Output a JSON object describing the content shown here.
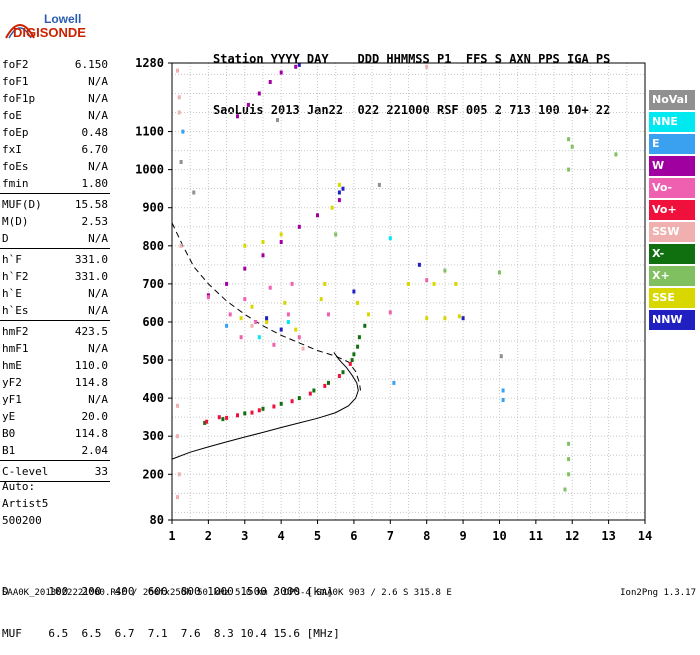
{
  "logo": {
    "line1": "Lowell",
    "line2": "DIGISONDE",
    "colors": {
      "text1": "#2a5db0",
      "text2": "#cc2200"
    }
  },
  "header": {
    "labels": [
      "Station",
      "YYYY",
      "DAY",
      "DDD",
      "HHMMSS",
      "P1",
      "FFS",
      "S",
      "AXN",
      "PPS",
      "IGA",
      "PS"
    ],
    "values": [
      "SaoLuis",
      "2013",
      "Jan22",
      "022",
      "221000",
      "RSF",
      "005",
      "2",
      "713",
      "100",
      "10+",
      "22"
    ]
  },
  "params": [
    [
      {
        "label": "foF2",
        "value": "6.150"
      },
      {
        "label": "foF1",
        "value": "N/A"
      },
      {
        "label": "foF1p",
        "value": "N/A"
      },
      {
        "label": "foE",
        "value": "N/A"
      },
      {
        "label": "foEp",
        "value": "0.48"
      },
      {
        "label": "fxI",
        "value": "6.70"
      },
      {
        "label": "foEs",
        "value": "N/A"
      },
      {
        "label": "fmin",
        "value": "1.80"
      }
    ],
    [
      {
        "label": "MUF(D)",
        "value": "15.58"
      },
      {
        "label": "M(D)",
        "value": "2.53"
      },
      {
        "label": "D",
        "value": "N/A"
      }
    ],
    [
      {
        "label": "h`F",
        "value": "331.0"
      },
      {
        "label": "h`F2",
        "value": "331.0"
      },
      {
        "label": "h`E",
        "value": "N/A"
      },
      {
        "label": "h`Es",
        "value": "N/A"
      }
    ],
    [
      {
        "label": "hmF2",
        "value": "423.5"
      },
      {
        "label": "hmF1",
        "value": "N/A"
      },
      {
        "label": "hmE",
        "value": "110.0"
      },
      {
        "label": "yF2",
        "value": "114.8"
      },
      {
        "label": "yF1",
        "value": "N/A"
      },
      {
        "label": "yE",
        "value": "20.0"
      },
      {
        "label": "B0",
        "value": "114.8"
      },
      {
        "label": "B1",
        "value": "2.04"
      }
    ],
    [
      {
        "label": "C-level",
        "value": "33"
      }
    ]
  ],
  "auto": {
    "line1": "Auto:",
    "line2": "Artist5",
    "line3": "500200"
  },
  "legend": [
    {
      "label": "NoVal",
      "color": "#909090"
    },
    {
      "label": "NNE",
      "color": "#00e8f0"
    },
    {
      "label": "E",
      "color": "#3aa0f0"
    },
    {
      "label": "W",
      "color": "#a000a0"
    },
    {
      "label": "Vo-",
      "color": "#f060b0"
    },
    {
      "label": "Vo+",
      "color": "#f0103c"
    },
    {
      "label": "SSW",
      "color": "#f0b0b0"
    },
    {
      "label": "X-",
      "color": "#107010"
    },
    {
      "label": "X+",
      "color": "#80c060"
    },
    {
      "label": "SSE",
      "color": "#d8d800"
    },
    {
      "label": "NNW",
      "color": "#2020c0"
    }
  ],
  "muf_table": {
    "row1_label": "D",
    "distances": [
      "100",
      "200",
      "400",
      "600",
      "800",
      "1000",
      "1500",
      "3000"
    ],
    "row1_unit": "[km]",
    "row2_label": "MUF",
    "mufs": [
      "6.5",
      "6.5",
      "6.7",
      "7.1",
      "7.6",
      "8.3",
      "10.4",
      "15.6"
    ],
    "row2_unit": "[MHz]"
  },
  "footer": {
    "left": "SAA0K_2013022221000.RSF / 260fx256h 50 kHz 5.0 km / DPS-4 SAA0K 903 / 2.6 S 315.8 E",
    "right": "Ion2Png 1.3.17"
  },
  "chart_data": {
    "type": "scatter",
    "x_ticks": [
      "1",
      "2",
      "3",
      "4",
      "5",
      "6",
      "7",
      "8",
      "9",
      "10",
      "11",
      "12",
      "13",
      "14"
    ],
    "y_ticks": [
      "80",
      "200",
      "300",
      "400",
      "500",
      "600",
      "700",
      "800",
      "900",
      "1000",
      "1100",
      "1280"
    ],
    "xlim": [
      1,
      14
    ],
    "ylim": [
      80,
      1280
    ],
    "grid": true,
    "legend_position": "right",
    "series": [
      {
        "color_key": "X-",
        "color": "#107010",
        "points": [
          [
            1.9,
            335
          ],
          [
            2.4,
            345
          ],
          [
            3.0,
            360
          ],
          [
            3.5,
            372
          ],
          [
            4.0,
            385
          ],
          [
            4.5,
            400
          ],
          [
            4.9,
            420
          ],
          [
            5.3,
            440
          ],
          [
            5.7,
            468
          ],
          [
            5.95,
            500
          ],
          [
            6.0,
            515
          ],
          [
            6.1,
            535
          ],
          [
            6.15,
            560
          ],
          [
            6.3,
            590
          ]
        ]
      },
      {
        "color_key": "Vo+",
        "color": "#f0103c",
        "points": [
          [
            1.95,
            338
          ],
          [
            2.5,
            348
          ],
          [
            3.2,
            362
          ],
          [
            3.8,
            378
          ],
          [
            4.3,
            392
          ],
          [
            4.8,
            412
          ],
          [
            5.2,
            432
          ],
          [
            5.6,
            458
          ],
          [
            5.9,
            490
          ],
          [
            2.3,
            350
          ],
          [
            2.8,
            355
          ],
          [
            3.4,
            368
          ]
        ]
      },
      {
        "color_key": "W",
        "color": "#a000a0",
        "points": [
          [
            2.0,
            670
          ],
          [
            2.5,
            700
          ],
          [
            3.0,
            740
          ],
          [
            3.5,
            775
          ],
          [
            4.0,
            810
          ],
          [
            4.5,
            850
          ],
          [
            5.0,
            880
          ],
          [
            5.6,
            920
          ],
          [
            2.8,
            1140
          ],
          [
            3.1,
            1170
          ],
          [
            3.4,
            1200
          ],
          [
            3.7,
            1230
          ],
          [
            4.0,
            1255
          ],
          [
            4.4,
            1270
          ]
        ]
      },
      {
        "color_key": "SSE",
        "color": "#d8d800",
        "points": [
          [
            3.0,
            800
          ],
          [
            3.5,
            810
          ],
          [
            4.0,
            830
          ],
          [
            2.9,
            610
          ],
          [
            3.2,
            640
          ],
          [
            3.6,
            600
          ],
          [
            4.1,
            650
          ],
          [
            4.4,
            580
          ],
          [
            5.2,
            700
          ],
          [
            5.4,
            900
          ],
          [
            5.6,
            960
          ],
          [
            6.1,
            650
          ],
          [
            6.4,
            620
          ],
          [
            8.0,
            610
          ],
          [
            8.5,
            610
          ],
          [
            8.9,
            615
          ],
          [
            7.5,
            700
          ],
          [
            8.2,
            700
          ],
          [
            8.8,
            700
          ],
          [
            5.1,
            660
          ]
        ]
      },
      {
        "color_key": "Vo-",
        "color": "#f060b0",
        "points": [
          [
            2.6,
            620
          ],
          [
            3.0,
            660
          ],
          [
            3.3,
            600
          ],
          [
            3.7,
            690
          ],
          [
            4.2,
            620
          ],
          [
            4.5,
            560
          ],
          [
            2.9,
            560
          ],
          [
            3.8,
            540
          ],
          [
            4.3,
            700
          ],
          [
            2.0,
            665
          ],
          [
            5.3,
            620
          ],
          [
            7.0,
            625
          ],
          [
            8.0,
            710
          ]
        ]
      },
      {
        "color_key": "NNW",
        "color": "#2020c0",
        "points": [
          [
            5.6,
            940
          ],
          [
            5.7,
            950
          ],
          [
            4.5,
            1275
          ],
          [
            3.6,
            610
          ],
          [
            4.0,
            580
          ],
          [
            6.0,
            680
          ],
          [
            7.8,
            750
          ],
          [
            9.0,
            610
          ]
        ]
      },
      {
        "color_key": "E",
        "color": "#3aa0f0",
        "points": [
          [
            1.3,
            1100
          ],
          [
            7.1,
            440
          ],
          [
            10.1,
            420
          ],
          [
            10.1,
            395
          ],
          [
            2.5,
            590
          ]
        ]
      },
      {
        "color_key": "X+",
        "color": "#80c060",
        "points": [
          [
            11.9,
            1080
          ],
          [
            11.9,
            1000
          ],
          [
            12.0,
            1060
          ],
          [
            13.2,
            1040
          ],
          [
            11.9,
            280
          ],
          [
            11.9,
            240
          ],
          [
            11.8,
            160
          ],
          [
            11.9,
            200
          ],
          [
            8.5,
            735
          ],
          [
            10.0,
            730
          ],
          [
            5.5,
            830
          ]
        ]
      },
      {
        "color_key": "NNE",
        "color": "#00e8f0",
        "points": [
          [
            3.4,
            560
          ],
          [
            4.2,
            600
          ],
          [
            7.0,
            820
          ]
        ]
      },
      {
        "color_key": "NoVal",
        "color": "#909090",
        "points": [
          [
            1.25,
            1020
          ],
          [
            1.6,
            940
          ],
          [
            3.9,
            1130
          ],
          [
            6.7,
            960
          ],
          [
            10.05,
            510
          ]
        ]
      },
      {
        "color_key": "SSW",
        "color": "#f0b0b0",
        "points": [
          [
            1.15,
            1260
          ],
          [
            1.2,
            1190
          ],
          [
            1.2,
            1150
          ],
          [
            1.25,
            800
          ],
          [
            1.15,
            380
          ],
          [
            1.15,
            300
          ],
          [
            1.2,
            200
          ],
          [
            1.15,
            140
          ],
          [
            8.0,
            1270
          ],
          [
            4.6,
            530
          ],
          [
            3.2,
            590
          ]
        ]
      }
    ],
    "profile_curves": {
      "solid": [
        [
          1.0,
          240
        ],
        [
          1.5,
          258
        ],
        [
          2.0,
          272
        ],
        [
          2.5,
          285
        ],
        [
          3.0,
          298
        ],
        [
          3.5,
          310
        ],
        [
          4.0,
          323
        ],
        [
          4.5,
          335
        ],
        [
          5.0,
          347
        ],
        [
          5.5,
          362
        ],
        [
          5.85,
          380
        ],
        [
          6.05,
          400
        ],
        [
          6.12,
          420
        ],
        [
          6.08,
          440
        ],
        [
          5.95,
          460
        ],
        [
          5.8,
          480
        ],
        [
          5.6,
          500
        ],
        [
          5.45,
          520
        ]
      ],
      "dashed": [
        [
          1.0,
          860
        ],
        [
          1.3,
          800
        ],
        [
          1.6,
          745
        ],
        [
          2.0,
          700
        ],
        [
          2.5,
          655
        ],
        [
          3.0,
          620
        ],
        [
          3.5,
          590
        ],
        [
          4.0,
          565
        ],
        [
          4.5,
          545
        ],
        [
          5.0,
          525
        ],
        [
          5.5,
          510
        ],
        [
          5.85,
          495
        ],
        [
          6.05,
          470
        ],
        [
          6.15,
          440
        ],
        [
          6.18,
          420
        ]
      ]
    }
  }
}
